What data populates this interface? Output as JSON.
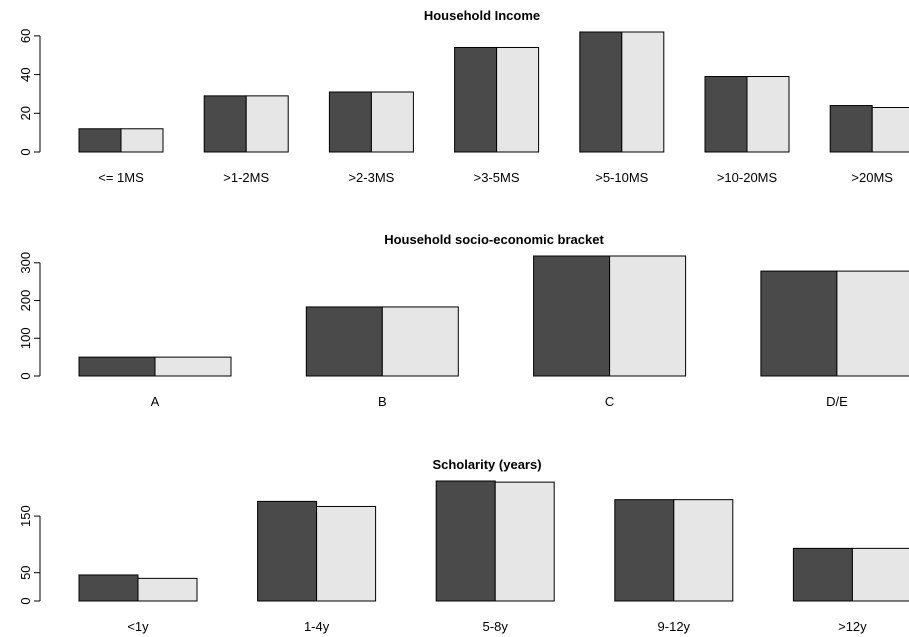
{
  "chart_data": [
    {
      "type": "bar",
      "title": "Household Income",
      "categories": [
        "<= 1MS",
        ">1-2MS",
        ">2-3MS",
        ">3-5MS",
        ">5-10MS",
        ">10-20MS",
        ">20MS"
      ],
      "series": [
        {
          "values": [
            12,
            29,
            31,
            54,
            62,
            39,
            24
          ],
          "color": "#4a4a4a"
        },
        {
          "values": [
            12,
            29,
            31,
            54,
            62,
            39,
            23
          ],
          "color": "#e6e6e6"
        }
      ],
      "yticks": [
        0,
        20,
        40,
        60
      ],
      "ylim": [
        0,
        62
      ]
    },
    {
      "type": "bar",
      "title": "Household socio-economic bracket",
      "categories": [
        "A",
        "B",
        "C",
        "D/E"
      ],
      "series": [
        {
          "values": [
            50,
            183,
            318,
            278
          ],
          "color": "#4a4a4a"
        },
        {
          "values": [
            50,
            183,
            318,
            278
          ],
          "color": "#e6e6e6"
        }
      ],
      "yticks": [
        0,
        100,
        200,
        300
      ],
      "ylim": [
        0,
        318
      ]
    },
    {
      "type": "bar",
      "title": "Scholarity (years)",
      "categories": [
        "<1y",
        "1-4y",
        "5-8y",
        "9-12y",
        ">12y"
      ],
      "series": [
        {
          "values": [
            46,
            176,
            212,
            179,
            93
          ],
          "color": "#4a4a4a"
        },
        {
          "values": [
            40,
            167,
            210,
            179,
            93
          ],
          "color": "#e6e6e6"
        }
      ],
      "yticks": [
        0,
        50,
        150
      ],
      "ylim": [
        0,
        212
      ]
    }
  ]
}
